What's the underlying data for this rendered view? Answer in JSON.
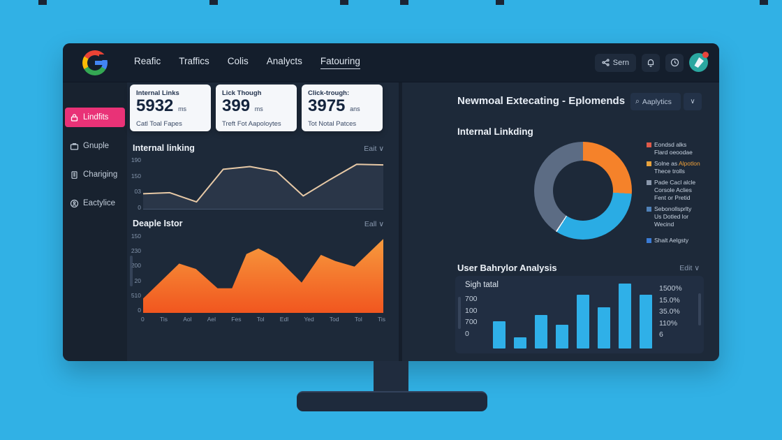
{
  "topnav": {
    "links": [
      "Reafic",
      "Traffics",
      "Colis",
      "Analycts",
      "Fatouring"
    ],
    "active_index": 4,
    "sern_label": "Sern"
  },
  "icons": {
    "chevron_down": "∨",
    "search": "⌕"
  },
  "sidebar": {
    "items": [
      {
        "label": "Lindfits"
      },
      {
        "label": "Gnuple"
      },
      {
        "label": "Chariging"
      },
      {
        "label": "Eactylice"
      }
    ]
  },
  "stat_cards": [
    {
      "title": "Internal Links",
      "value": "5932",
      "unit": "ms",
      "subtitle": "Catl Toal Fapes"
    },
    {
      "title": "Lick Though",
      "value": "399",
      "unit": "ms",
      "subtitle": "Treft Fot Aapoloytes"
    },
    {
      "title": "Click-trough:",
      "value": "3975",
      "unit": "ans",
      "subtitle": "Tot Notal Patces"
    }
  ],
  "edit_labels": {
    "chart1": "Eait",
    "chart2": "Eall",
    "bars": "Edit"
  },
  "right_panel": {
    "title": "Newmoal Extecating - Eplomends",
    "search_label": "Aaplytics"
  },
  "chart_data": [
    {
      "id": "internal-linking-line",
      "type": "line",
      "title": "Internal linking",
      "yticks": [
        "190",
        "150",
        "03",
        "0"
      ],
      "ylim": [
        0,
        190
      ],
      "values": [
        58,
        62,
        28,
        148,
        158,
        140,
        50,
        110,
        166,
        164
      ],
      "line_color": "#e7c9a6"
    },
    {
      "id": "deaple-istor-area",
      "type": "area",
      "title": "Deaple Istor",
      "yticks": [
        "150",
        "230",
        "200",
        "20",
        "510",
        "0"
      ],
      "xticks": [
        "0",
        "Tis",
        "Aol",
        "Ael",
        "Fes",
        "Tol",
        "Edl",
        "Yed",
        "Tod",
        "Tol",
        "Tis"
      ],
      "ylim": [
        0,
        310
      ],
      "points_x_pct": [
        0,
        15,
        22,
        31,
        37,
        43,
        48,
        56,
        66,
        74,
        80,
        88,
        100
      ],
      "values": [
        56,
        192,
        171,
        96,
        96,
        229,
        251,
        211,
        118,
        226,
        202,
        180,
        288
      ],
      "fill_colors": [
        "#f79a3d",
        "#f1561f"
      ]
    },
    {
      "id": "internal-linkding-donut",
      "type": "pie",
      "title": "Internal Linkding",
      "segments": [
        {
          "label": "orange-segment",
          "value": 26,
          "color": "#f5822a"
        },
        {
          "label": "cyan-segment",
          "value": 33,
          "color": "#2aace4"
        },
        {
          "label": "slate-segment",
          "value": 41,
          "color": "#5c6c84"
        }
      ],
      "legend": [
        {
          "color": "#e05a4a",
          "lines": [
            "Eondsd alks",
            "Flard oeoodae"
          ]
        },
        {
          "color": "#e8a33d",
          "lines": [
            "Solne as Alpotlon",
            "Thece trolls"
          ],
          "highlight_word": "Alpotlon",
          "highlight_color": "#f0a13a"
        },
        {
          "color": "#8a97ab",
          "lines": [
            "Pade Cacl alcle",
            "Corsole Aclies",
            "Fent or Pretid"
          ]
        },
        {
          "color": "#4f81b8",
          "lines": [
            "Sebonollsprlty",
            "Us Dotled lor",
            "Wecind"
          ]
        },
        {
          "color": "#3a7bd5",
          "lines": [
            "Shalt Aelgsty"
          ]
        }
      ]
    },
    {
      "id": "user-bahrylor-bars",
      "type": "bar",
      "title": "User Bahrylor Analysis",
      "left_header": "Sigh tatal",
      "left_ticks": [
        "700",
        "100",
        "700",
        "0"
      ],
      "right_ticks": [
        "1500%",
        "15.0%",
        "35.0%",
        "110%",
        "6"
      ],
      "values": [
        42,
        17,
        52,
        37,
        83,
        63,
        100,
        83
      ],
      "bar_color": "#2fb0e8"
    }
  ]
}
